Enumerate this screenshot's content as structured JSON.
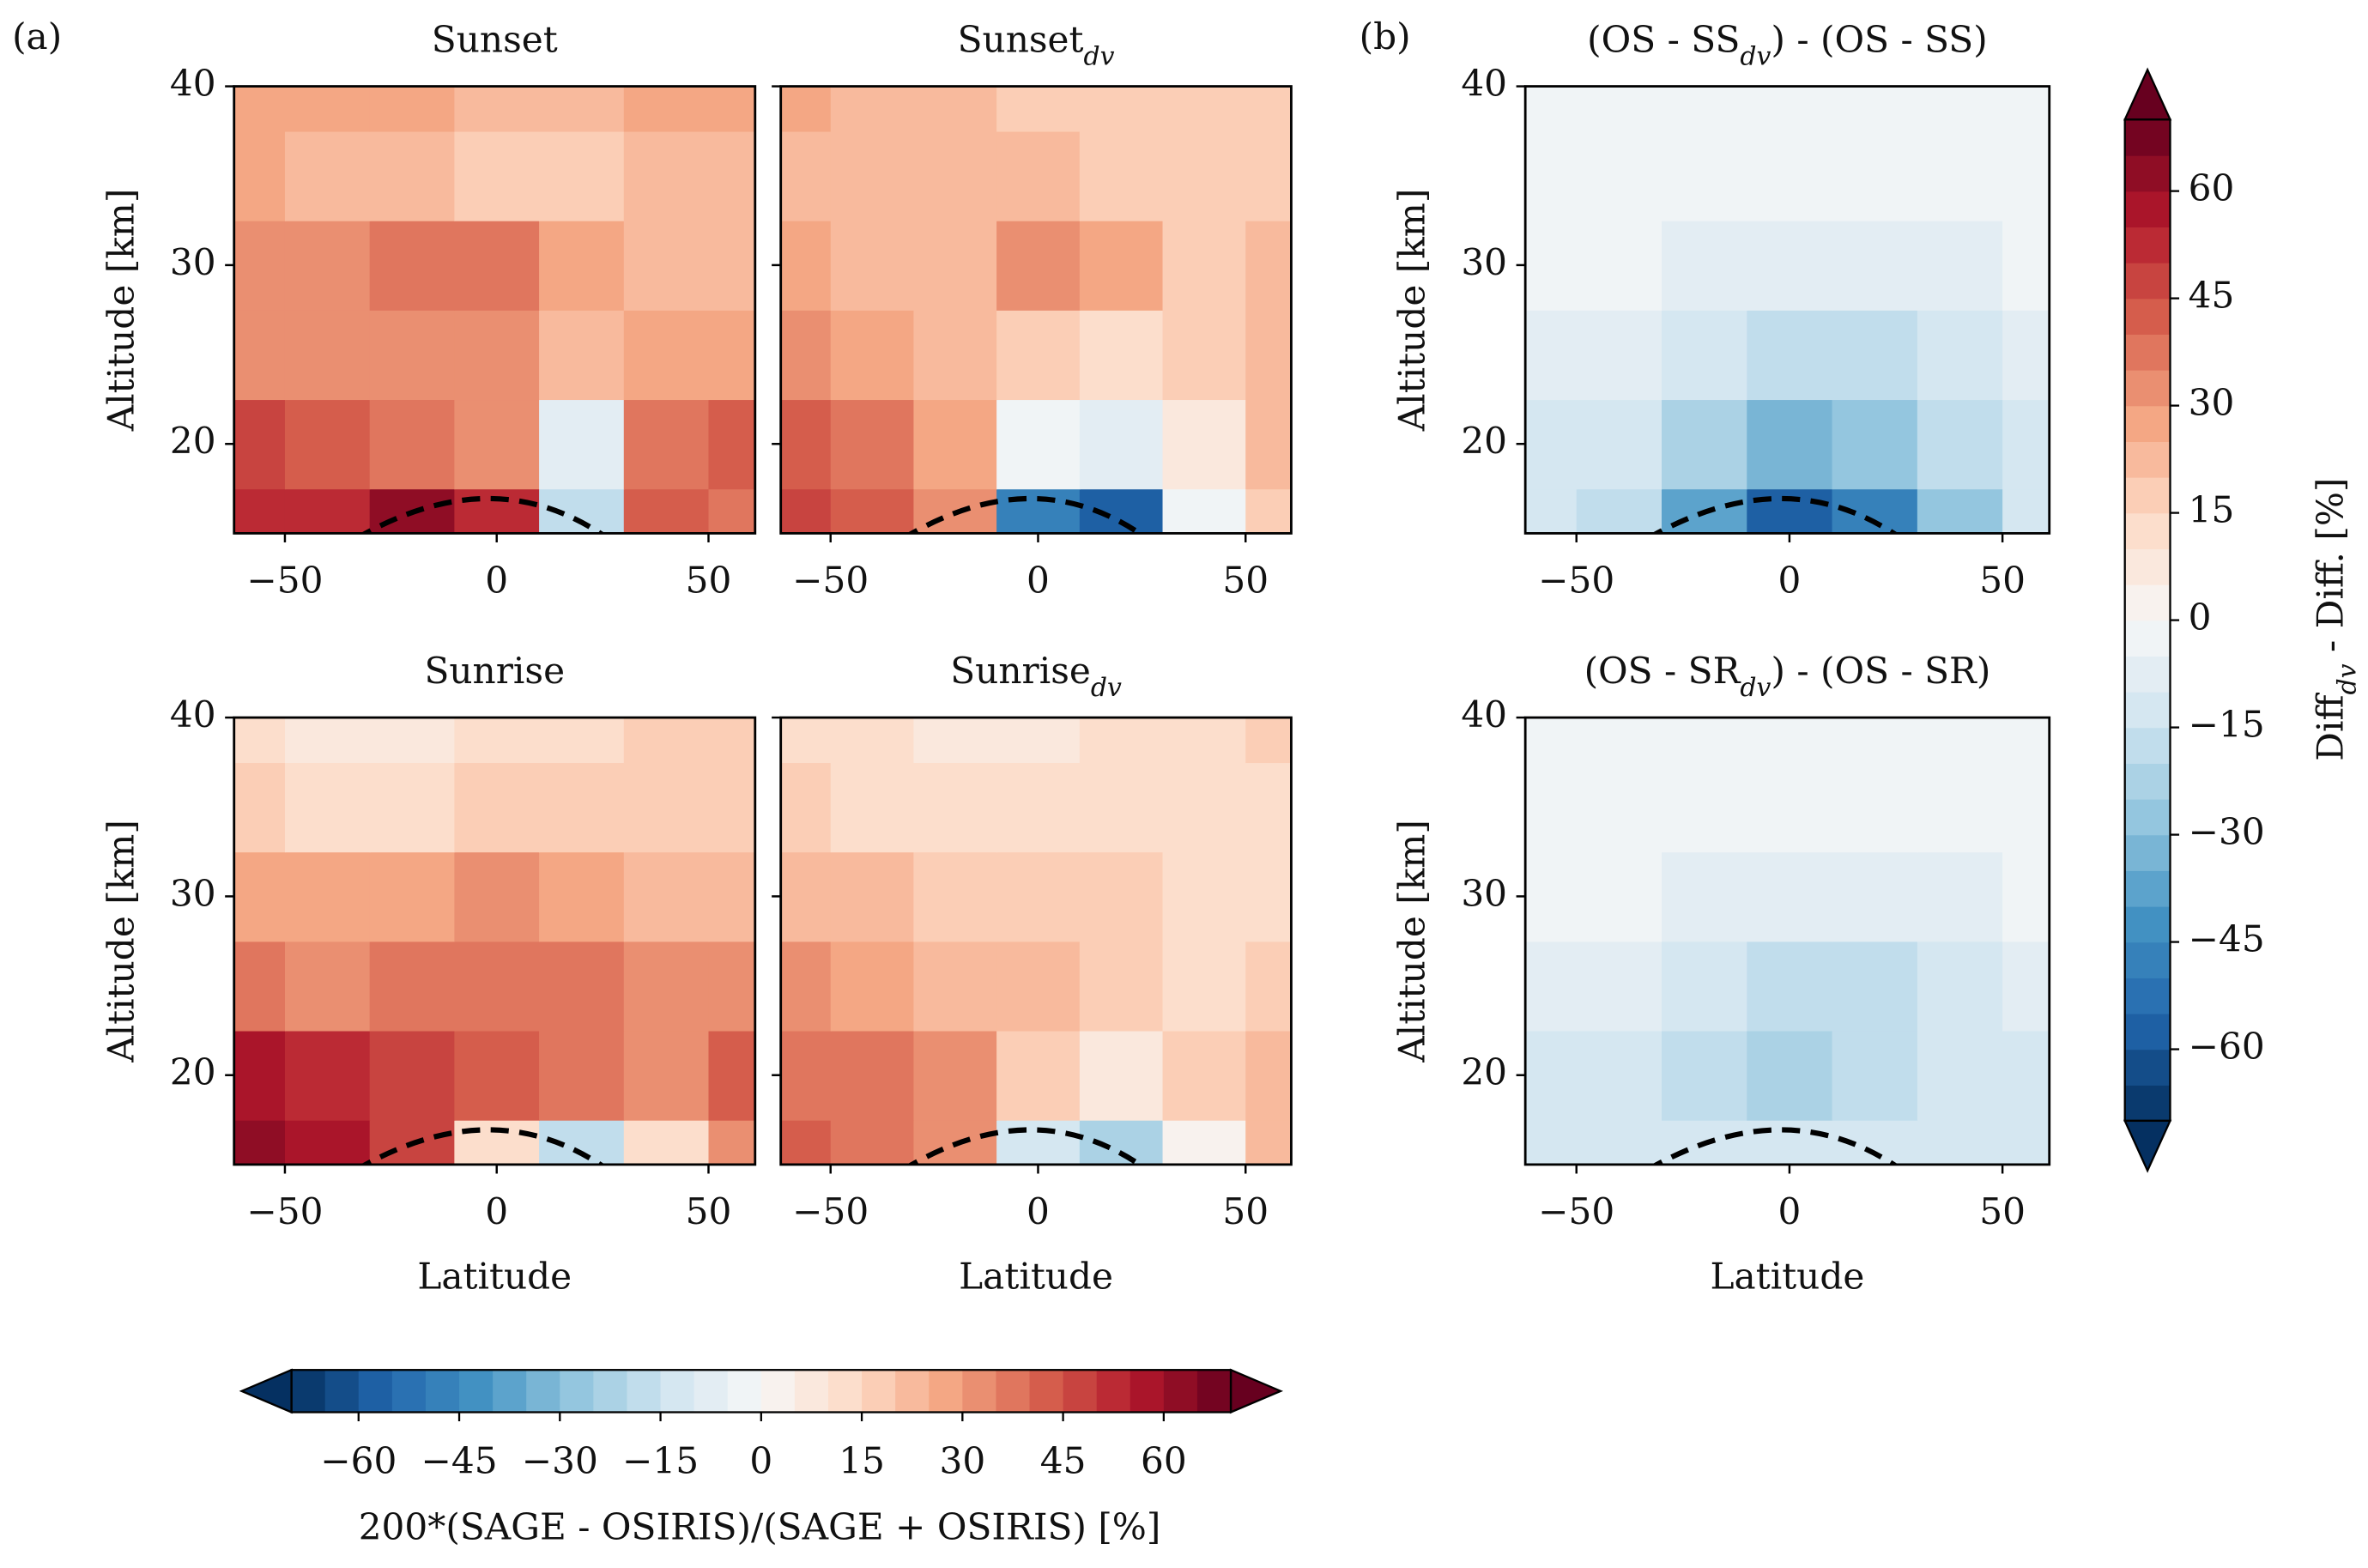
{
  "panel_labels": [
    "(a)",
    "(b)"
  ],
  "colormap": [
    "#053061",
    "#2166ac",
    "#4393c3",
    "#92c5de",
    "#d1e5f0",
    "#f7f7f7",
    "#fddbc7",
    "#f4a582",
    "#d6604d",
    "#b2182b",
    "#67001f"
  ],
  "levels": [
    -70,
    -65,
    -60,
    -55,
    -50,
    -45,
    -40,
    -35,
    -30,
    -25,
    -20,
    -15,
    -10,
    -5,
    0,
    5,
    10,
    15,
    20,
    25,
    30,
    35,
    40,
    45,
    50,
    55,
    60,
    65,
    70
  ],
  "colorbars": [
    {
      "orientation": "horizontal",
      "label_parts": [
        {
          "text": "200*(SAGE - OSIRIS)/(SAGE + OSIRIS) [%]"
        }
      ],
      "ticks": [
        {
          "value": -60,
          "label": "−60"
        },
        {
          "value": -45,
          "label": "−45"
        },
        {
          "value": -30,
          "label": "−30"
        },
        {
          "value": -15,
          "label": "−15"
        },
        0,
        15,
        30,
        45,
        60
      ]
    },
    {
      "orientation": "vertical",
      "label_parts": [
        {
          "text": "Diff"
        },
        {
          "text": "dv",
          "sub": true
        },
        {
          "text": " - Diff.  [%]"
        }
      ],
      "ticks": [
        {
          "value": -60,
          "label": "−60"
        },
        {
          "value": -45,
          "label": "−45"
        },
        {
          "value": -30,
          "label": "−30"
        },
        {
          "value": -15,
          "label": "−15"
        },
        0,
        15,
        30,
        45,
        60
      ]
    }
  ],
  "chart_data": [
    {
      "type": "contour",
      "colorbar": 0,
      "title_parts": [
        {
          "text": "Sunset"
        }
      ],
      "ylabel": "Altitude [km]",
      "show_yticklabels": true,
      "xlim": [
        -62,
        61
      ],
      "ylim": [
        15,
        40
      ],
      "xticks": [
        {
          "value": -50,
          "label": "−50"
        },
        0,
        50
      ],
      "yticks": [
        20,
        30,
        40
      ],
      "lat": [
        -60,
        -40,
        -20,
        0,
        20,
        40,
        60
      ],
      "alt": [
        15,
        20,
        25,
        30,
        35,
        40
      ],
      "z": [
        [
          50,
          50,
          60,
          50,
          -20,
          40,
          35
        ],
        [
          45,
          40,
          35,
          30,
          -10,
          35,
          40
        ],
        [
          30,
          30,
          30,
          30,
          20,
          25,
          25
        ],
        [
          30,
          30,
          35,
          35,
          25,
          20,
          20
        ],
        [
          25,
          20,
          20,
          15,
          15,
          20,
          20
        ],
        [
          25,
          25,
          25,
          20,
          20,
          25,
          25
        ]
      ]
    },
    {
      "type": "contour",
      "colorbar": 0,
      "title_parts": [
        {
          "text": "Sunset"
        },
        {
          "text": "dv",
          "sub": true
        }
      ],
      "show_yticklabels": false,
      "xlim": [
        -62,
        61
      ],
      "ylim": [
        15,
        40
      ],
      "xticks": [
        {
          "value": -50,
          "label": "−50"
        },
        0,
        50
      ],
      "yticks": [
        20,
        30,
        40
      ],
      "lat": [
        -60,
        -40,
        -20,
        0,
        20,
        40,
        60
      ],
      "alt": [
        15,
        20,
        25,
        30,
        35,
        40
      ],
      "z": [
        [
          45,
          40,
          30,
          -50,
          -60,
          -5,
          15
        ],
        [
          40,
          35,
          25,
          -5,
          -10,
          5,
          20
        ],
        [
          30,
          25,
          20,
          15,
          10,
          15,
          20
        ],
        [
          25,
          20,
          20,
          30,
          25,
          15,
          20
        ],
        [
          20,
          20,
          20,
          20,
          15,
          15,
          15
        ],
        [
          25,
          20,
          20,
          15,
          15,
          15,
          15
        ]
      ]
    },
    {
      "type": "contour",
      "colorbar": 1,
      "title_parts": [
        {
          "text": "(OS - SS"
        },
        {
          "text": "dv",
          "sub": true
        },
        {
          "text": ") - (OS - SS)"
        }
      ],
      "ylabel": "Altitude [km]",
      "show_yticklabels": true,
      "xlim": [
        -62,
        61
      ],
      "ylim": [
        15,
        40
      ],
      "xticks": [
        {
          "value": -50,
          "label": "−50"
        },
        0,
        50
      ],
      "yticks": [
        20,
        30,
        40
      ],
      "lat": [
        -60,
        -40,
        -20,
        0,
        20,
        40,
        60
      ],
      "alt": [
        15,
        20,
        25,
        30,
        35,
        40
      ],
      "z": [
        [
          -15,
          -20,
          -40,
          -60,
          -50,
          -30,
          -15
        ],
        [
          -12,
          -15,
          -25,
          -35,
          -30,
          -20,
          -12
        ],
        [
          -8,
          -10,
          -15,
          -20,
          -18,
          -12,
          -8
        ],
        [
          -5,
          -5,
          -8,
          -10,
          -8,
          -7,
          -5
        ],
        [
          -3,
          -3,
          -3,
          -5,
          -5,
          -3,
          -3
        ],
        [
          -3,
          -3,
          -3,
          -3,
          -3,
          -3,
          -3
        ]
      ]
    },
    {
      "type": "contour",
      "colorbar": 0,
      "title_parts": [
        {
          "text": "Sunrise"
        }
      ],
      "ylabel": "Altitude [km]",
      "xlabel": "Latitude",
      "show_yticklabels": true,
      "xlim": [
        -62,
        61
      ],
      "ylim": [
        15,
        40
      ],
      "xticks": [
        {
          "value": -50,
          "label": "−50"
        },
        0,
        50
      ],
      "yticks": [
        20,
        30,
        40
      ],
      "lat": [
        -60,
        -40,
        -20,
        0,
        20,
        40,
        60
      ],
      "alt": [
        15,
        20,
        25,
        30,
        35,
        40
      ],
      "z": [
        [
          60,
          55,
          45,
          10,
          -20,
          10,
          30
        ],
        [
          55,
          50,
          45,
          40,
          35,
          30,
          40
        ],
        [
          35,
          30,
          35,
          35,
          35,
          30,
          30
        ],
        [
          25,
          25,
          25,
          30,
          25,
          20,
          20
        ],
        [
          15,
          10,
          10,
          15,
          15,
          15,
          15
        ],
        [
          10,
          5,
          5,
          10,
          10,
          15,
          15
        ]
      ]
    },
    {
      "type": "contour",
      "colorbar": 0,
      "title_parts": [
        {
          "text": "Sunrise"
        },
        {
          "text": "dv",
          "sub": true
        }
      ],
      "xlabel": "Latitude",
      "show_yticklabels": false,
      "xlim": [
        -62,
        61
      ],
      "ylim": [
        15,
        40
      ],
      "xticks": [
        {
          "value": -50,
          "label": "−50"
        },
        0,
        50
      ],
      "yticks": [
        20,
        30,
        40
      ],
      "lat": [
        -60,
        -40,
        -20,
        0,
        20,
        40,
        60
      ],
      "alt": [
        15,
        20,
        25,
        30,
        35,
        40
      ],
      "z": [
        [
          40,
          35,
          30,
          -15,
          -25,
          0,
          20
        ],
        [
          35,
          35,
          30,
          15,
          5,
          15,
          20
        ],
        [
          30,
          25,
          20,
          20,
          15,
          10,
          15
        ],
        [
          20,
          20,
          15,
          15,
          15,
          10,
          10
        ],
        [
          15,
          10,
          10,
          10,
          10,
          10,
          10
        ],
        [
          10,
          10,
          5,
          5,
          10,
          10,
          15
        ]
      ]
    },
    {
      "type": "contour",
      "colorbar": 1,
      "title_parts": [
        {
          "text": "(OS - SR"
        },
        {
          "text": "dv",
          "sub": true
        },
        {
          "text": ") - (OS - SR)"
        }
      ],
      "ylabel": "Altitude [km]",
      "xlabel": "Latitude",
      "show_yticklabels": true,
      "xlim": [
        -62,
        61
      ],
      "ylim": [
        15,
        40
      ],
      "xticks": [
        {
          "value": -50,
          "label": "−50"
        },
        0,
        50
      ],
      "yticks": [
        20,
        30,
        40
      ],
      "lat": [
        -60,
        -40,
        -20,
        0,
        20,
        40,
        60
      ],
      "alt": [
        15,
        20,
        25,
        30,
        35,
        40
      ],
      "z": [
        [
          -15,
          -15,
          -15,
          -15,
          -15,
          -12,
          -12
        ],
        [
          -12,
          -15,
          -18,
          -25,
          -20,
          -15,
          -12
        ],
        [
          -8,
          -10,
          -15,
          -20,
          -18,
          -12,
          -8
        ],
        [
          -5,
          -5,
          -8,
          -10,
          -10,
          -7,
          -5
        ],
        [
          -3,
          -3,
          -3,
          -5,
          -5,
          -3,
          -3
        ],
        [
          -3,
          -3,
          -3,
          -3,
          -3,
          -3,
          -3
        ]
      ]
    }
  ]
}
